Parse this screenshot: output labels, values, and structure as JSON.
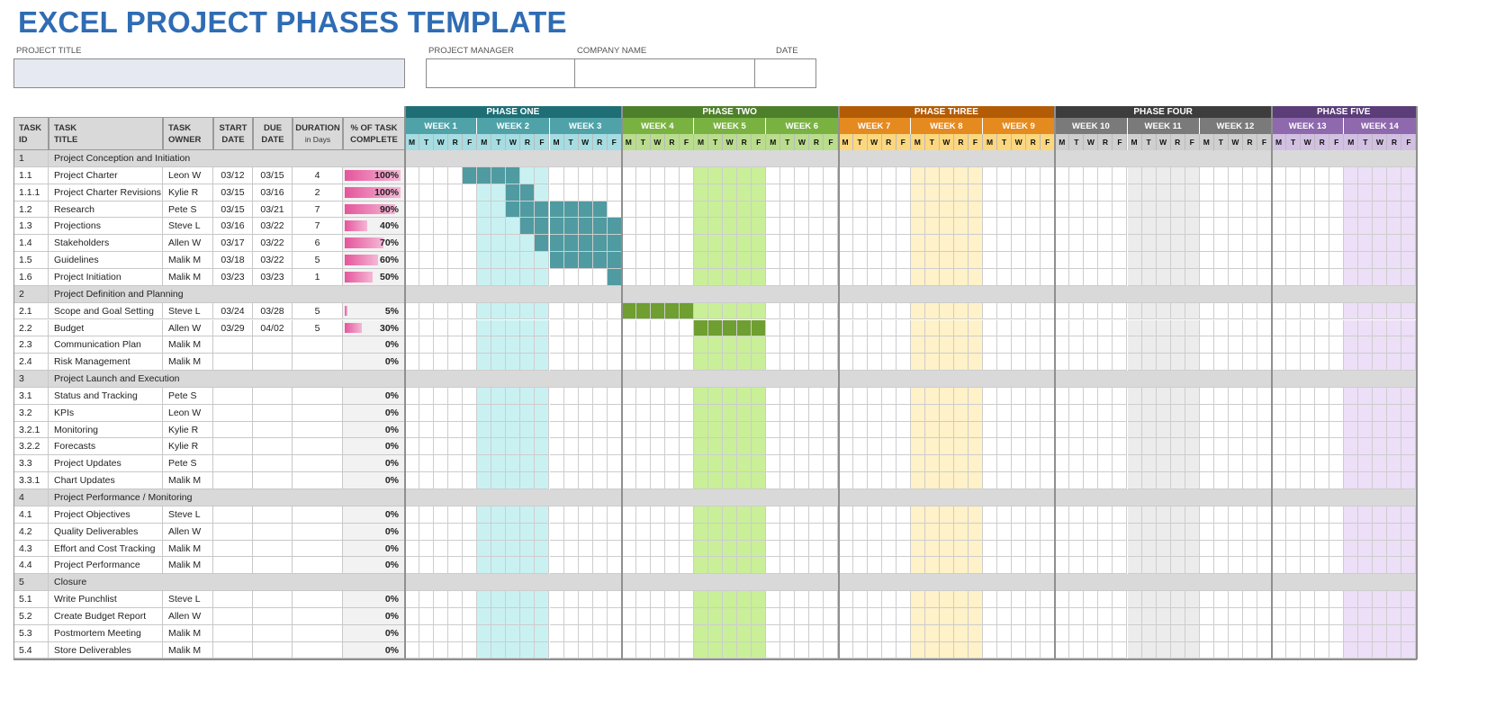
{
  "title": "EXCEL PROJECT PHASES TEMPLATE",
  "fields": {
    "project_title_label": "PROJECT TITLE",
    "project_manager_label": "PROJECT MANAGER",
    "company_name_label": "COMPANY NAME",
    "date_label": "DATE",
    "project_title_value": "",
    "project_manager_value": "",
    "company_name_value": "",
    "date_value": ""
  },
  "columns": [
    {
      "label": "TASK\nID",
      "sub": ""
    },
    {
      "label": "TASK\nTITLE",
      "sub": ""
    },
    {
      "label": "TASK\nOWNER",
      "sub": ""
    },
    {
      "label": "START\nDATE",
      "sub": ""
    },
    {
      "label": "DUE\nDATE",
      "sub": ""
    },
    {
      "label": "DURATION",
      "sub": "in Days"
    },
    {
      "label": "% OF TASK\nCOMPLETE",
      "sub": ""
    }
  ],
  "phases": [
    {
      "label": "PHASE ONE",
      "color": "#1f6e75",
      "week_color": "#4fa3a8",
      "day_color": "#a6dde2",
      "stripe_color": "#c9f1f2",
      "bar_color": "#4f9ba1",
      "weeks": [
        "WEEK 1",
        "WEEK 2",
        "WEEK 3"
      ]
    },
    {
      "label": "PHASE TWO",
      "color": "#4e7f2b",
      "week_color": "#7ab242",
      "day_color": "#b9dd8d",
      "stripe_color": "#c9ef98",
      "bar_color": "#6f9e31",
      "weeks": [
        "WEEK 4",
        "WEEK 5",
        "WEEK 6"
      ]
    },
    {
      "label": "PHASE THREE",
      "color": "#b35c06",
      "week_color": "#e58a1f",
      "day_color": "#fcd77e",
      "stripe_color": "#fff1c8",
      "bar_color": "#e58a1f",
      "weeks": [
        "WEEK 7",
        "WEEK 8",
        "WEEK 9"
      ]
    },
    {
      "label": "PHASE FOUR",
      "color": "#3d3d3d",
      "week_color": "#7a7a7a",
      "day_color": "#cfcfcf",
      "stripe_color": "#ececec",
      "bar_color": "#7a7a7a",
      "weeks": [
        "WEEK 10",
        "WEEK 11",
        "WEEK 12"
      ]
    },
    {
      "label": "PHASE FIVE",
      "color": "#5b3d78",
      "week_color": "#8e69ad",
      "day_color": "#d2c0e3",
      "stripe_color": "#ecdff7",
      "bar_color": "#8e69ad",
      "weeks": [
        "WEEK 13",
        "WEEK 14"
      ]
    }
  ],
  "day_letters": [
    "M",
    "T",
    "W",
    "R",
    "F"
  ],
  "tasks": [
    {
      "id": "1",
      "title": "Project Conception and Initiation",
      "summary": true
    },
    {
      "id": "1.1",
      "title": "Project Charter",
      "owner": "Leon W",
      "start": "03/12",
      "due": "03/15",
      "duration": "4",
      "pct": "100%",
      "pct_value": 100,
      "bar": [
        4,
        7
      ]
    },
    {
      "id": "1.1.1",
      "title": "Project Charter Revisions",
      "owner": "Kylie R",
      "start": "03/15",
      "due": "03/16",
      "duration": "2",
      "pct": "100%",
      "pct_value": 100,
      "bar": [
        7,
        8
      ]
    },
    {
      "id": "1.2",
      "title": "Research",
      "owner": "Pete S",
      "start": "03/15",
      "due": "03/21",
      "duration": "7",
      "pct": "90%",
      "pct_value": 90,
      "bar": [
        7,
        13
      ]
    },
    {
      "id": "1.3",
      "title": "Projections",
      "owner": "Steve L",
      "start": "03/16",
      "due": "03/22",
      "duration": "7",
      "pct": "40%",
      "pct_value": 40,
      "bar": [
        8,
        14
      ]
    },
    {
      "id": "1.4",
      "title": "Stakeholders",
      "owner": "Allen W",
      "start": "03/17",
      "due": "03/22",
      "duration": "6",
      "pct": "70%",
      "pct_value": 70,
      "bar": [
        9,
        14
      ]
    },
    {
      "id": "1.5",
      "title": "Guidelines",
      "owner": "Malik M",
      "start": "03/18",
      "due": "03/22",
      "duration": "5",
      "pct": "60%",
      "pct_value": 60,
      "bar": [
        10,
        14
      ]
    },
    {
      "id": "1.6",
      "title": "Project Initiation",
      "owner": "Malik M",
      "start": "03/23",
      "due": "03/23",
      "duration": "1",
      "pct": "50%",
      "pct_value": 50,
      "bar": [
        14,
        14
      ]
    },
    {
      "id": "2",
      "title": "Project Definition and Planning",
      "summary": true
    },
    {
      "id": "2.1",
      "title": "Scope and Goal Setting",
      "owner": "Steve L",
      "start": "03/24",
      "due": "03/28",
      "duration": "5",
      "pct": "5%",
      "pct_value": 5,
      "bar": [
        15,
        19
      ]
    },
    {
      "id": "2.2",
      "title": "Budget",
      "owner": "Allen W",
      "start": "03/29",
      "due": "04/02",
      "duration": "5",
      "pct": "30%",
      "pct_value": 30,
      "bar": [
        20,
        24
      ]
    },
    {
      "id": "2.3",
      "title": "Communication Plan",
      "owner": "Malik M",
      "start": "",
      "due": "",
      "duration": "",
      "pct": "0%",
      "pct_value": 0
    },
    {
      "id": "2.4",
      "title": "Risk Management",
      "owner": "Malik M",
      "start": "",
      "due": "",
      "duration": "",
      "pct": "0%",
      "pct_value": 0
    },
    {
      "id": "3",
      "title": "Project Launch and Execution",
      "summary": true
    },
    {
      "id": "3.1",
      "title": "Status and Tracking",
      "owner": "Pete S",
      "start": "",
      "due": "",
      "duration": "",
      "pct": "0%",
      "pct_value": 0
    },
    {
      "id": "3.2",
      "title": "KPIs",
      "owner": "Leon W",
      "start": "",
      "due": "",
      "duration": "",
      "pct": "0%",
      "pct_value": 0
    },
    {
      "id": "3.2.1",
      "title": "Monitoring",
      "owner": "Kylie R",
      "start": "",
      "due": "",
      "duration": "",
      "pct": "0%",
      "pct_value": 0
    },
    {
      "id": "3.2.2",
      "title": "Forecasts",
      "owner": "Kylie R",
      "start": "",
      "due": "",
      "duration": "",
      "pct": "0%",
      "pct_value": 0
    },
    {
      "id": "3.3",
      "title": "Project Updates",
      "owner": "Pete S",
      "start": "",
      "due": "",
      "duration": "",
      "pct": "0%",
      "pct_value": 0
    },
    {
      "id": "3.3.1",
      "title": "Chart Updates",
      "owner": "Malik M",
      "start": "",
      "due": "",
      "duration": "",
      "pct": "0%",
      "pct_value": 0
    },
    {
      "id": "4",
      "title": "Project Performance / Monitoring",
      "summary": true
    },
    {
      "id": "4.1",
      "title": "Project Objectives",
      "owner": "Steve L",
      "start": "",
      "due": "",
      "duration": "",
      "pct": "0%",
      "pct_value": 0
    },
    {
      "id": "4.2",
      "title": "Quality Deliverables",
      "owner": "Allen W",
      "start": "",
      "due": "",
      "duration": "",
      "pct": "0%",
      "pct_value": 0
    },
    {
      "id": "4.3",
      "title": "Effort and Cost Tracking",
      "owner": "Malik M",
      "start": "",
      "due": "",
      "duration": "",
      "pct": "0%",
      "pct_value": 0
    },
    {
      "id": "4.4",
      "title": "Project Performance",
      "owner": "Malik M",
      "start": "",
      "due": "",
      "duration": "",
      "pct": "0%",
      "pct_value": 0
    },
    {
      "id": "5",
      "title": "Closure",
      "summary": true
    },
    {
      "id": "5.1",
      "title": "Write Punchlist",
      "owner": "Steve L",
      "start": "",
      "due": "",
      "duration": "",
      "pct": "0%",
      "pct_value": 0
    },
    {
      "id": "5.2",
      "title": "Create Budget Report",
      "owner": "Allen W",
      "start": "",
      "due": "",
      "duration": "",
      "pct": "0%",
      "pct_value": 0
    },
    {
      "id": "5.3",
      "title": "Postmortem Meeting",
      "owner": "Malik M",
      "start": "",
      "due": "",
      "duration": "",
      "pct": "0%",
      "pct_value": 0
    },
    {
      "id": "5.4",
      "title": "Store Deliverables",
      "owner": "Malik M",
      "start": "",
      "due": "",
      "duration": "",
      "pct": "0%",
      "pct_value": 0
    }
  ]
}
